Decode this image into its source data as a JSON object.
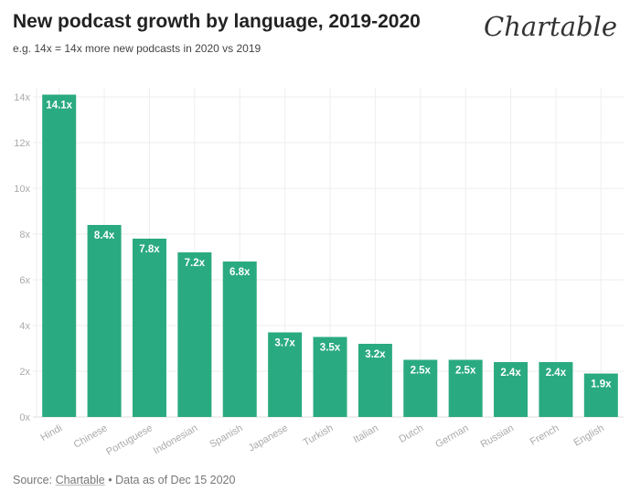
{
  "header": {
    "title": "New podcast growth by language, 2019-2020",
    "subtitle": "e.g. 14x = 14x more new podcasts in 2020 vs 2019",
    "logo": "Chartable"
  },
  "footer": {
    "source_prefix": "Source: ",
    "source_link": "Chartable",
    "source_suffix": " • Data as of Dec 15 2020"
  },
  "chart_data": {
    "type": "bar",
    "title": "New podcast growth by language, 2019-2020",
    "subtitle": "e.g. 14x = 14x more new podcasts in 2020 vs 2019",
    "categories": [
      "Hindi",
      "Chinese",
      "Portuguese",
      "Indonesian",
      "Spanish",
      "Japanese",
      "Turkish",
      "Italian",
      "Dutch",
      "German",
      "Russian",
      "French",
      "English"
    ],
    "values": [
      14.1,
      8.4,
      7.8,
      7.2,
      6.8,
      3.7,
      3.5,
      3.2,
      2.5,
      2.5,
      2.4,
      2.4,
      1.9
    ],
    "data_labels": [
      "14.1x",
      "8.4x",
      "7.8x",
      "7.2x",
      "6.8x",
      "3.7x",
      "3.5x",
      "3.2x",
      "2.5x",
      "2.5x",
      "2.4x",
      "2.4x",
      "1.9x"
    ],
    "ylim": [
      0,
      14
    ],
    "yticks": [
      0,
      2,
      4,
      6,
      8,
      10,
      12,
      14
    ],
    "ytick_labels": [
      "0x",
      "2x",
      "4x",
      "6x",
      "8x",
      "10x",
      "12x",
      "14x"
    ],
    "xlabel": "",
    "ylabel": "",
    "grid": true,
    "bar_color": "#2aaa80"
  }
}
